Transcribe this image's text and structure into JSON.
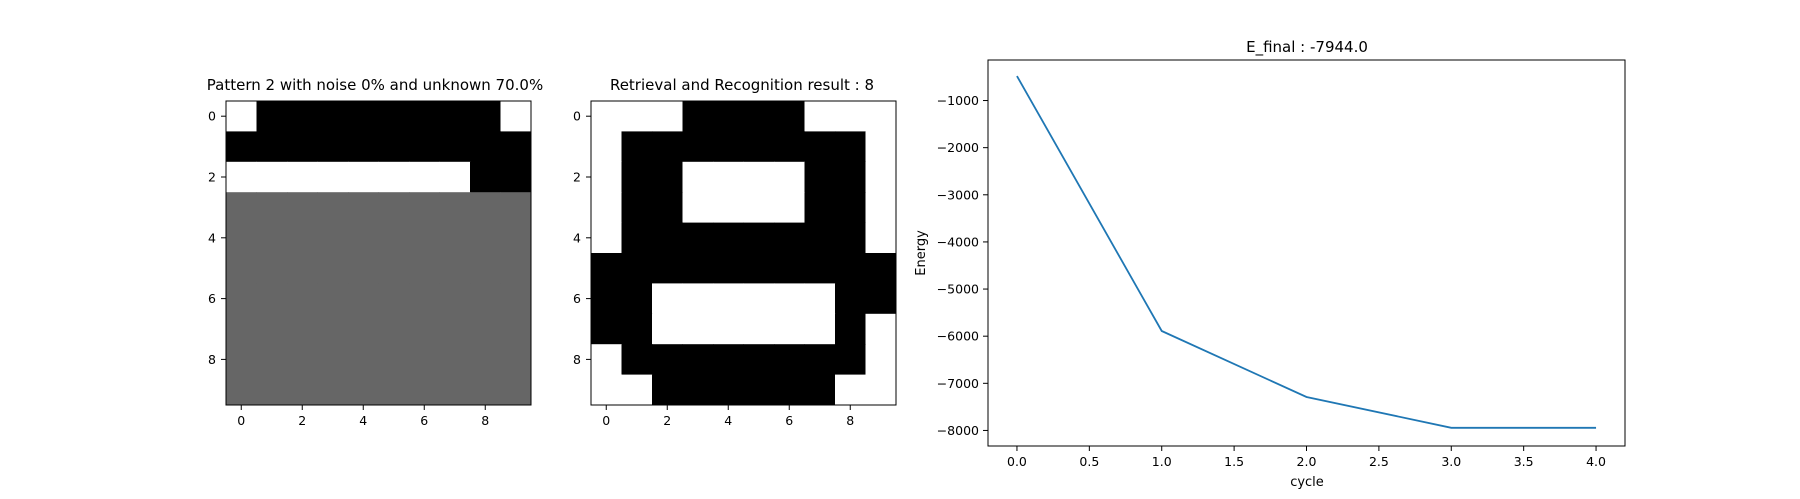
{
  "chart_data": [
    {
      "type": "heatmap",
      "title": "Pattern 2 with noise 0% and unknown 70.0%",
      "rows": 10,
      "cols": 10,
      "xticks": [
        "0",
        "2",
        "4",
        "6",
        "8"
      ],
      "yticks": [
        "0",
        "2",
        "4",
        "6",
        "8"
      ],
      "legend": {
        "1": "#000000",
        "0": "#ffffff",
        "-1": "#666666"
      },
      "cells": [
        [
          0,
          1,
          1,
          1,
          1,
          1,
          1,
          1,
          1,
          0
        ],
        [
          1,
          1,
          1,
          1,
          1,
          1,
          1,
          1,
          1,
          1
        ],
        [
          0,
          0,
          0,
          0,
          0,
          0,
          0,
          0,
          1,
          1
        ],
        [
          -1,
          -1,
          -1,
          -1,
          -1,
          -1,
          -1,
          -1,
          -1,
          -1
        ],
        [
          -1,
          -1,
          -1,
          -1,
          -1,
          -1,
          -1,
          -1,
          -1,
          -1
        ],
        [
          -1,
          -1,
          -1,
          -1,
          -1,
          -1,
          -1,
          -1,
          -1,
          -1
        ],
        [
          -1,
          -1,
          -1,
          -1,
          -1,
          -1,
          -1,
          -1,
          -1,
          -1
        ],
        [
          -1,
          -1,
          -1,
          -1,
          -1,
          -1,
          -1,
          -1,
          -1,
          -1
        ],
        [
          -1,
          -1,
          -1,
          -1,
          -1,
          -1,
          -1,
          -1,
          -1,
          -1
        ],
        [
          -1,
          -1,
          -1,
          -1,
          -1,
          -1,
          -1,
          -1,
          -1,
          -1
        ]
      ]
    },
    {
      "type": "heatmap",
      "title": "Retrieval and Recognition result : 8",
      "rows": 10,
      "cols": 10,
      "xticks": [
        "0",
        "2",
        "4",
        "6",
        "8"
      ],
      "yticks": [
        "0",
        "2",
        "4",
        "6",
        "8"
      ],
      "legend": {
        "1": "#000000",
        "0": "#ffffff"
      },
      "cells": [
        [
          0,
          0,
          0,
          1,
          1,
          1,
          1,
          0,
          0,
          0
        ],
        [
          0,
          1,
          1,
          1,
          1,
          1,
          1,
          1,
          1,
          0
        ],
        [
          0,
          1,
          1,
          0,
          0,
          0,
          0,
          1,
          1,
          0
        ],
        [
          0,
          1,
          1,
          0,
          0,
          0,
          0,
          1,
          1,
          0
        ],
        [
          0,
          1,
          1,
          1,
          1,
          1,
          1,
          1,
          1,
          0
        ],
        [
          1,
          1,
          1,
          1,
          1,
          1,
          1,
          1,
          1,
          1
        ],
        [
          1,
          1,
          0,
          0,
          0,
          0,
          0,
          0,
          1,
          1
        ],
        [
          1,
          1,
          0,
          0,
          0,
          0,
          0,
          0,
          1,
          0
        ],
        [
          0,
          1,
          1,
          1,
          1,
          1,
          1,
          1,
          1,
          0
        ],
        [
          0,
          0,
          1,
          1,
          1,
          1,
          1,
          1,
          0,
          0
        ]
      ]
    },
    {
      "type": "line",
      "title": "E_final : -7944.0",
      "xlabel": "cycle",
      "ylabel": "Energy",
      "x": [
        0,
        1,
        2,
        3,
        4
      ],
      "series": [
        {
          "values": [
            -480,
            -5890,
            -7290,
            -7944,
            -7944
          ],
          "color": "#1f77b4"
        }
      ],
      "xlim": [
        -0.2,
        4.2
      ],
      "ylim": [
        -8330,
        -140
      ],
      "xticks": [
        "0.0",
        "0.5",
        "1.0",
        "1.5",
        "2.0",
        "2.5",
        "3.0",
        "3.5",
        "4.0"
      ],
      "yticks": [
        "-1000",
        "-2000",
        "-3000",
        "-4000",
        "-5000",
        "-6000",
        "-7000",
        "-8000"
      ]
    }
  ]
}
